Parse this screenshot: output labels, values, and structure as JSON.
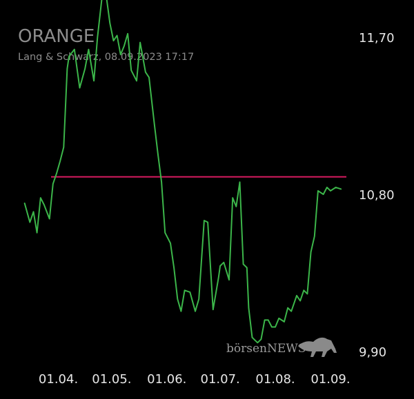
{
  "colors": {
    "background": "#000000",
    "line": "#3cb64a",
    "reference": "#d81b60",
    "title": "#8c8c8c",
    "subtitle": "#8c8c8c",
    "axis_text": "#e6e6e6",
    "watermark": "#9a9a9a"
  },
  "chart_data": {
    "type": "line",
    "title": "ORANGE",
    "subtitle": "Lang & Schwarz, 08.09.2023 17:17",
    "y_ticks": [
      "11,70",
      "10,80",
      "9,90"
    ],
    "y_tick_values": [
      11.7,
      10.8,
      9.9
    ],
    "ylim": [
      9.9,
      11.7
    ],
    "x_ticks": [
      "01.04.",
      "01.05.",
      "01.06.",
      "01.07.",
      "01.08.",
      "01.09."
    ],
    "x_tick_dates": [
      "2023-04-01",
      "2023-05-01",
      "2023-06-01",
      "2023-07-01",
      "2023-08-01",
      "2023-09-01"
    ],
    "xlim": [
      "2023-03-12",
      "2023-09-08"
    ],
    "reference_line": 10.9,
    "grid": false,
    "watermark_text": "börsenNEWS",
    "watermark_icon": "bull-icon",
    "series": [
      {
        "x": [
          "2023-03-13",
          "2023-03-16",
          "2023-03-18",
          "2023-03-20",
          "2023-03-22",
          "2023-03-24",
          "2023-03-27",
          "2023-03-29",
          "2023-03-31",
          "2023-04-02",
          "2023-04-04",
          "2023-04-06",
          "2023-04-07",
          "2023-04-10",
          "2023-04-13",
          "2023-04-16",
          "2023-04-18",
          "2023-04-21",
          "2023-04-23",
          "2023-04-26",
          "2023-04-28",
          "2023-04-30",
          "2023-05-02",
          "2023-05-04",
          "2023-05-06",
          "2023-05-08",
          "2023-05-10",
          "2023-05-12",
          "2023-05-15",
          "2023-05-17",
          "2023-05-20",
          "2023-05-22",
          "2023-05-25",
          "2023-05-27",
          "2023-05-29",
          "2023-05-31",
          "2023-06-03",
          "2023-06-05",
          "2023-06-07",
          "2023-06-09",
          "2023-06-11",
          "2023-06-14",
          "2023-06-17",
          "2023-06-19",
          "2023-06-22",
          "2023-06-24",
          "2023-06-27",
          "2023-06-30",
          "2023-07-01",
          "2023-07-03",
          "2023-07-06",
          "2023-07-08",
          "2023-07-10",
          "2023-07-12",
          "2023-07-14",
          "2023-07-16",
          "2023-07-17",
          "2023-07-19",
          "2023-07-20",
          "2023-07-22",
          "2023-07-24",
          "2023-07-26",
          "2023-07-28",
          "2023-07-30",
          "2023-08-01",
          "2023-08-03",
          "2023-08-06",
          "2023-08-08",
          "2023-08-10",
          "2023-08-13",
          "2023-08-15",
          "2023-08-17",
          "2023-08-19",
          "2023-08-21",
          "2023-08-23",
          "2023-08-25",
          "2023-08-28",
          "2023-08-30",
          "2023-09-01",
          "2023-09-04",
          "2023-09-07"
        ],
        "values": [
          10.75,
          10.64,
          10.7,
          10.58,
          10.78,
          10.74,
          10.66,
          10.86,
          10.92,
          10.99,
          11.07,
          11.52,
          11.59,
          11.63,
          11.41,
          11.52,
          11.63,
          11.45,
          11.7,
          11.97,
          11.93,
          11.78,
          11.68,
          11.71,
          11.6,
          11.65,
          11.72,
          11.51,
          11.45,
          11.67,
          11.5,
          11.47,
          11.2,
          11.03,
          10.87,
          10.58,
          10.52,
          10.38,
          10.2,
          10.13,
          10.25,
          10.24,
          10.13,
          10.2,
          10.65,
          10.64,
          10.14,
          10.32,
          10.39,
          10.41,
          10.31,
          10.78,
          10.73,
          10.87,
          10.4,
          10.38,
          10.15,
          9.98,
          9.97,
          9.95,
          9.97,
          10.08,
          10.08,
          10.04,
          10.04,
          10.09,
          10.07,
          10.15,
          10.13,
          10.22,
          10.19,
          10.25,
          10.23,
          10.47,
          10.56,
          10.82,
          10.8,
          10.84,
          10.82,
          10.84,
          10.83
        ]
      }
    ]
  }
}
